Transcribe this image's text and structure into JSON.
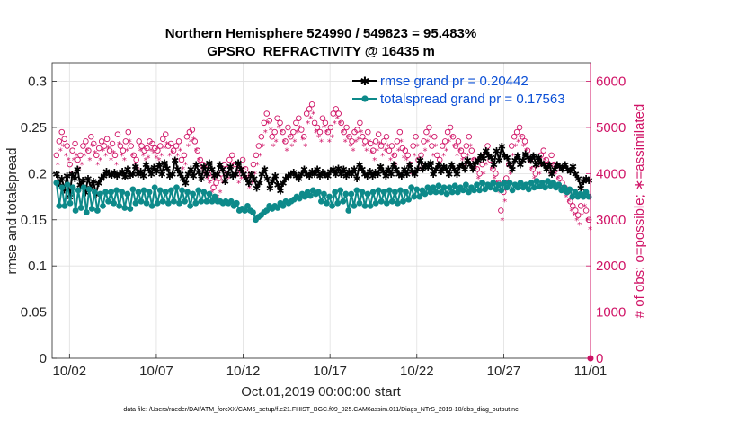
{
  "chart_data": {
    "type": "line",
    "title_line1": "Northern Hemisphere 524990 / 549823 = 95.483%",
    "title_line2": "GPSRO_REFRACTIVITY @ 16435 m",
    "xlabel": "Oct.01,2019 00:00:00 start",
    "ylabel_left": "rmse and totalspread",
    "ylabel_right": "# of obs: o=possible; ∗=assimilated",
    "x_ticks": [
      {
        "day": 1,
        "label": "10/02"
      },
      {
        "day": 6,
        "label": "10/07"
      },
      {
        "day": 11,
        "label": "10/12"
      },
      {
        "day": 16,
        "label": "10/17"
      },
      {
        "day": 21,
        "label": "10/22"
      },
      {
        "day": 26,
        "label": "10/27"
      },
      {
        "day": 31,
        "label": "11/01"
      }
    ],
    "xlim": [
      0,
      31
    ],
    "ylim_left": [
      0,
      0.32
    ],
    "ylim_right": [
      0,
      6400
    ],
    "yticks_left": [
      "0",
      "0.05",
      "0.1",
      "0.15",
      "0.2",
      "0.25",
      "0.3"
    ],
    "yticks_left_values": [
      0,
      0.05,
      0.1,
      0.15,
      0.2,
      0.25,
      0.3
    ],
    "yticks_right": [
      "0",
      "1000",
      "2000",
      "3000",
      "4000",
      "5000",
      "6000"
    ],
    "yticks_right_values": [
      0,
      1000,
      2000,
      3000,
      4000,
      5000,
      6000
    ],
    "series": [
      {
        "name": "rmse grand pr = 0.20442",
        "color": "#000000",
        "values": [
          0.2,
          0.19,
          0.195,
          0.183,
          0.198,
          0.175,
          0.2,
          0.195,
          0.205,
          0.188,
          0.193,
          0.18,
          0.195,
          0.185,
          0.192,
          0.178,
          0.19,
          0.195,
          0.198,
          0.203,
          0.2,
          0.199,
          0.202,
          0.198,
          0.2,
          0.203,
          0.197,
          0.205,
          0.199,
          0.2,
          0.208,
          0.2,
          0.203,
          0.198,
          0.21,
          0.205,
          0.2,
          0.207,
          0.203,
          0.21,
          0.2,
          0.212,
          0.206,
          0.198,
          0.2,
          0.215,
          0.205,
          0.2,
          0.195,
          0.19,
          0.2,
          0.205,
          0.198,
          0.21,
          0.202,
          0.195,
          0.208,
          0.2,
          0.212,
          0.205,
          0.198,
          0.2,
          0.21,
          0.205,
          0.192,
          0.2,
          0.208,
          0.198,
          0.2,
          0.212,
          0.205,
          0.2,
          0.195,
          0.19,
          0.2,
          0.195,
          0.185,
          0.19,
          0.2,
          0.205,
          0.195,
          0.185,
          0.192,
          0.198,
          0.188,
          0.182,
          0.19,
          0.195,
          0.198,
          0.2,
          0.202,
          0.198,
          0.195,
          0.2,
          0.205,
          0.2,
          0.198,
          0.203,
          0.2,
          0.205,
          0.198,
          0.202,
          0.2,
          0.198,
          0.203,
          0.205,
          0.2,
          0.206,
          0.2,
          0.205,
          0.198,
          0.203,
          0.2,
          0.205,
          0.195,
          0.21,
          0.205,
          0.2,
          0.198,
          0.203,
          0.198,
          0.202,
          0.2,
          0.208,
          0.203,
          0.198,
          0.205,
          0.2,
          0.21,
          0.205,
          0.2,
          0.198,
          0.205,
          0.2,
          0.21,
          0.203,
          0.2,
          0.205,
          0.215,
          0.205,
          0.21,
          0.207,
          0.212,
          0.2,
          0.205,
          0.21,
          0.203,
          0.208,
          0.205,
          0.2,
          0.21,
          0.205,
          0.2,
          0.208,
          0.21,
          0.205,
          0.215,
          0.21,
          0.205,
          0.212,
          0.215,
          0.22,
          0.217,
          0.225,
          0.22,
          0.218,
          0.21,
          0.225,
          0.215,
          0.23,
          0.22,
          0.218,
          0.21,
          0.205,
          0.215,
          0.22,
          0.21,
          0.215,
          0.222,
          0.218,
          0.215,
          0.22,
          0.21,
          0.218,
          0.212,
          0.21,
          0.205,
          0.21,
          0.2,
          0.205,
          0.21,
          0.208,
          0.205,
          0.21,
          0.205,
          0.203,
          0.208,
          0.2,
          0.195,
          0.185,
          0.192,
          0.195,
          0.193
        ]
      },
      {
        "name": "totalspread grand pr = 0.17563",
        "color": "#0d8a8a",
        "values": [
          0.19,
          0.165,
          0.185,
          0.165,
          0.188,
          0.168,
          0.185,
          0.16,
          0.182,
          0.163,
          0.185,
          0.158,
          0.183,
          0.162,
          0.18,
          0.16,
          0.178,
          0.165,
          0.18,
          0.17,
          0.18,
          0.168,
          0.182,
          0.165,
          0.18,
          0.163,
          0.178,
          0.162,
          0.183,
          0.168,
          0.18,
          0.17,
          0.182,
          0.168,
          0.18,
          0.165,
          0.185,
          0.168,
          0.182,
          0.17,
          0.18,
          0.168,
          0.182,
          0.17,
          0.185,
          0.168,
          0.182,
          0.17,
          0.18,
          0.165,
          0.178,
          0.168,
          0.182,
          0.17,
          0.18,
          0.17,
          0.178,
          0.17,
          0.175,
          0.17,
          0.17,
          0.168,
          0.17,
          0.168,
          0.17,
          0.165,
          0.168,
          0.16,
          0.162,
          0.16,
          0.165,
          0.16,
          0.158,
          0.15,
          0.153,
          0.155,
          0.158,
          0.16,
          0.165,
          0.162,
          0.165,
          0.163,
          0.168,
          0.165,
          0.17,
          0.168,
          0.17,
          0.172,
          0.175,
          0.173,
          0.178,
          0.175,
          0.18,
          0.176,
          0.182,
          0.178,
          0.18,
          0.17,
          0.178,
          0.168,
          0.175,
          0.165,
          0.18,
          0.168,
          0.182,
          0.17,
          0.178,
          0.16,
          0.178,
          0.165,
          0.182,
          0.168,
          0.18,
          0.165,
          0.178,
          0.165,
          0.18,
          0.168,
          0.182,
          0.17,
          0.18,
          0.168,
          0.182,
          0.17,
          0.18,
          0.168,
          0.182,
          0.17,
          0.18,
          0.172,
          0.185,
          0.175,
          0.183,
          0.175,
          0.182,
          0.178,
          0.185,
          0.18,
          0.185,
          0.18,
          0.187,
          0.18,
          0.185,
          0.178,
          0.185,
          0.18,
          0.187,
          0.18,
          0.185,
          0.182,
          0.188,
          0.18,
          0.185,
          0.182,
          0.188,
          0.182,
          0.19,
          0.183,
          0.188,
          0.185,
          0.19,
          0.183,
          0.188,
          0.182,
          0.19,
          0.185,
          0.19,
          0.182,
          0.188,
          0.185,
          0.19,
          0.185,
          0.188,
          0.183,
          0.19,
          0.185,
          0.192,
          0.186,
          0.19,
          0.185,
          0.192,
          0.187,
          0.19,
          0.185,
          0.188,
          0.182,
          0.185,
          0.18,
          0.183,
          0.175,
          0.18,
          0.175,
          0.178,
          0.175,
          0.18,
          0.175
        ]
      }
    ],
    "scatter_possible_note": "obs counts plotted on right axis",
    "possible": [
      4400,
      4700,
      4900,
      4750,
      4600,
      4200,
      4500,
      4650,
      4300,
      4400,
      4600,
      4700,
      4500,
      4800,
      4650,
      4400,
      4550,
      4700,
      4600,
      4750,
      4500,
      4650,
      4400,
      4850,
      4600,
      4500,
      4700,
      4900,
      4600,
      4400,
      4300,
      4700,
      4600,
      4500,
      4550,
      4700,
      4650,
      4550,
      4500,
      4600,
      4750,
      4850,
      4600,
      4650,
      4500,
      4600,
      4700,
      4300,
      4400,
      4800,
      4900,
      4950,
      4700,
      4500,
      4300,
      4200,
      4100,
      4000,
      3900,
      3700,
      3800,
      3900,
      4000,
      4200,
      4100,
      4300,
      4400,
      4200,
      4000,
      4100,
      4300,
      4100,
      3900,
      4000,
      4200,
      4400,
      4600,
      4800,
      5100,
      5300,
      5150,
      4800,
      4900,
      5200,
      5100,
      4900,
      4700,
      5000,
      4800,
      4900,
      5100,
      5200,
      4950,
      4800,
      5300,
      5400,
      5500,
      5100,
      5000,
      4900,
      5200,
      5100,
      4900,
      5000,
      5300,
      5400,
      5300,
      5100,
      4900,
      5000,
      4800,
      4700,
      4900,
      4950,
      5100,
      4800,
      4700,
      4900,
      4650,
      4500,
      4700,
      4850,
      4600,
      4700,
      4800,
      4500,
      4600,
      4400,
      4700,
      4900,
      4550,
      4500,
      4400,
      4200,
      4600,
      4800,
      4300,
      4400,
      4700,
      4900,
      5000,
      4600,
      4800,
      4400,
      4300,
      4600,
      4700,
      4900,
      5000,
      4800,
      4600,
      4700,
      4500,
      4400,
      4600,
      4800,
      4500,
      4300,
      4100,
      4000,
      4200,
      4400,
      4600,
      4300,
      4100,
      4000,
      3800,
      3200,
      3600,
      3900,
      4200,
      4600,
      4800,
      4900,
      5000,
      4800,
      4700,
      4500,
      4300,
      4100,
      4000,
      4200,
      4400,
      4500,
      4300,
      4200,
      4400,
      4200,
      4100,
      3900,
      3800,
      3700,
      3600,
      3400,
      3300,
      3200,
      3100,
      3300,
      3500,
      3200,
      3000
    ],
    "assimilated": [
      4200,
      4500,
      4600,
      4400,
      4300,
      4000,
      4300,
      4400,
      4100,
      4200,
      4400,
      4500,
      4300,
      4600,
      4450,
      4200,
      4300,
      4500,
      4400,
      4550,
      4300,
      4450,
      4200,
      4650,
      4400,
      4300,
      4500,
      4700,
      4400,
      4200,
      4100,
      4500,
      4400,
      4300,
      4350,
      4500,
      4450,
      4350,
      4300,
      4400,
      4550,
      4650,
      4400,
      4450,
      4300,
      4400,
      4500,
      4100,
      4200,
      4600,
      4700,
      4750,
      4500,
      4300,
      4100,
      4000,
      3900,
      3800,
      3600,
      3400,
      3500,
      3600,
      3800,
      4000,
      3900,
      4100,
      4200,
      4000,
      3800,
      3900,
      4100,
      3900,
      3700,
      3800,
      4000,
      4200,
      4400,
      4600,
      4900,
      5100,
      4950,
      4600,
      4700,
      5000,
      4900,
      4700,
      4500,
      4800,
      4600,
      4700,
      4900,
      5000,
      4750,
      4600,
      5100,
      5200,
      5300,
      4900,
      4800,
      4700,
      5000,
      4900,
      4700,
      4800,
      5100,
      5200,
      5100,
      4900,
      4700,
      4800,
      4600,
      4500,
      4700,
      4750,
      4900,
      4600,
      4500,
      4700,
      4450,
      4300,
      4500,
      4650,
      4400,
      4500,
      4600,
      4300,
      4400,
      4200,
      4500,
      4700,
      4350,
      4300,
      4200,
      4000,
      4400,
      4600,
      4100,
      4200,
      4500,
      4700,
      4800,
      4400,
      4600,
      4200,
      4100,
      4400,
      4500,
      4700,
      4800,
      4600,
      4400,
      4500,
      4300,
      4200,
      4400,
      4600,
      4300,
      4100,
      3900,
      3800,
      4000,
      4200,
      4400,
      4100,
      3900,
      3800,
      3600,
      3000,
      3400,
      3700,
      4000,
      4400,
      4600,
      4700,
      4800,
      4600,
      4500,
      4300,
      4100,
      3900,
      3800,
      4000,
      4200,
      4300,
      4100,
      4000,
      4200,
      4000,
      3900,
      3700,
      3600,
      3500,
      3400,
      3200,
      3100,
      3000,
      2900,
      3100,
      3300,
      3000,
      2800
    ],
    "legend_location": "top-right",
    "grid": true
  },
  "footer_text": "data file: /Users/raeder/DAI/ATM_forcXX/CAM6_setup/f.e21.FHIST_BGC.f09_025.CAM6assim.011/Diags_NTrS_2019-10/obs_diag_output.nc",
  "colors": {
    "rmse": "#000000",
    "spread": "#0d8a8a",
    "obs": "#d01366",
    "legend_text": "#0b4fd6",
    "grid": "#e0e0e0"
  }
}
